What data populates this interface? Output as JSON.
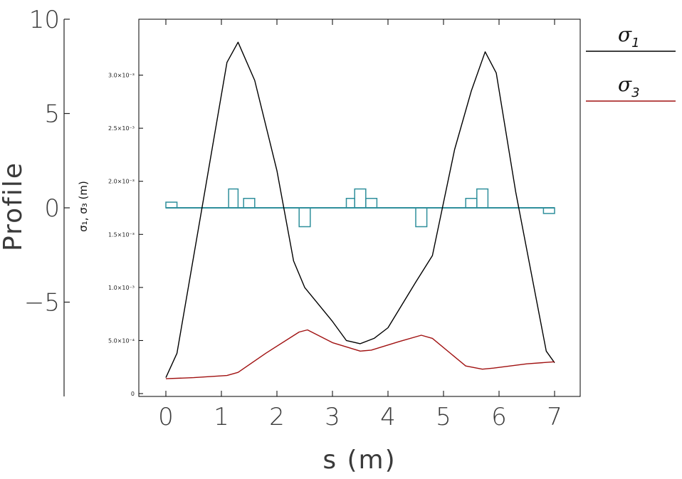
{
  "chart_data": {
    "type": "line",
    "xlabel": "s (m)",
    "x_ticks": [
      "0",
      "1",
      "2",
      "3",
      "4",
      "5",
      "6",
      "7"
    ],
    "xlim": [
      -0.3,
      7.3
    ],
    "y_profile_label": "Profile",
    "y_profile_ticks": [
      "10",
      "5",
      "0",
      "-5"
    ],
    "y_profile_lim": [
      -10,
      10
    ],
    "y_sigma_label": "σ₁, σ₃ (m)",
    "y_sigma_ticks": [
      "0",
      "5.0×10⁻⁴",
      "1.0×10⁻³",
      "1.5×10⁻³",
      "2.0×10⁻³",
      "2.5×10⁻³",
      "3.0×10⁻³"
    ],
    "y_sigma_lim": [
      0,
      0.0035
    ],
    "legend_placement": "top-right",
    "legend": [
      {
        "symbol": "σ",
        "sub": "1",
        "color": "#000000"
      },
      {
        "symbol": "σ",
        "sub": "3",
        "color": "#a01010"
      }
    ],
    "series": [
      {
        "key": "sigma1",
        "color": "#000000",
        "x": [
          0,
          0.2,
          0.7,
          1.1,
          1.3,
          1.6,
          2.0,
          2.3,
          2.5,
          3.0,
          3.25,
          3.5,
          3.75,
          4.0,
          4.5,
          4.8,
          5.2,
          5.5,
          5.75,
          5.95,
          6.3,
          6.85,
          7.0
        ],
        "y": [
          0.00015,
          0.00038,
          0.0019,
          0.00312,
          0.00331,
          0.00295,
          0.0021,
          0.00125,
          0.001,
          0.00068,
          0.0005,
          0.00047,
          0.00052,
          0.00062,
          0.00105,
          0.0013,
          0.0023,
          0.00285,
          0.00322,
          0.00302,
          0.0019,
          0.0004,
          0.00029
        ]
      },
      {
        "key": "sigma3",
        "color": "#a01010",
        "x": [
          0,
          0.5,
          1.1,
          1.3,
          1.8,
          2.4,
          2.55,
          3.0,
          3.5,
          3.7,
          4.2,
          4.6,
          4.8,
          5.4,
          5.7,
          5.9,
          6.5,
          7.0
        ],
        "y": [
          0.00014,
          0.00015,
          0.00017,
          0.0002,
          0.00038,
          0.00058,
          0.0006,
          0.00048,
          0.0004,
          0.00041,
          0.00049,
          0.00055,
          0.00052,
          0.00026,
          0.00023,
          0.00024,
          0.00028,
          0.0003
        ]
      }
    ],
    "profile": {
      "color": "#2f8f9c",
      "baseline": 0,
      "blocks": [
        {
          "x0": 0.0,
          "x1": 0.2,
          "h": 0.3
        },
        {
          "x0": 1.13,
          "x1": 1.3,
          "h": 1.0
        },
        {
          "x0": 1.4,
          "x1": 1.6,
          "h": 0.5
        },
        {
          "x0": 2.4,
          "x1": 2.6,
          "h": -1.0
        },
        {
          "x0": 3.25,
          "x1": 3.4,
          "h": 0.5
        },
        {
          "x0": 3.4,
          "x1": 3.6,
          "h": 1.0
        },
        {
          "x0": 3.6,
          "x1": 3.8,
          "h": 0.5
        },
        {
          "x0": 4.5,
          "x1": 4.7,
          "h": -1.0
        },
        {
          "x0": 5.4,
          "x1": 5.6,
          "h": 0.5
        },
        {
          "x0": 5.6,
          "x1": 5.8,
          "h": 1.0
        },
        {
          "x0": 6.8,
          "x1": 7.0,
          "h": -0.3
        }
      ]
    }
  }
}
